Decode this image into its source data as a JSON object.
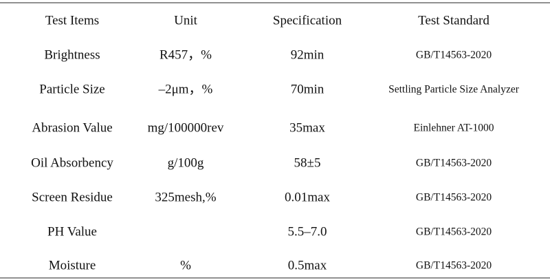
{
  "table": {
    "header": [
      "Test Items",
      "Unit",
      "Specification",
      "Test Standard"
    ],
    "rows": [
      [
        "Brightness",
        "R457，%",
        "92min",
        "GB/T14563-2020"
      ],
      [
        "Particle Size",
        "–2μm，%",
        "70min",
        "Settling Particle Size Analyzer"
      ],
      [
        "Abrasion Value",
        "mg/100000rev",
        "35max",
        "Einlehner  AT-1000"
      ],
      [
        "Oil Absorbency",
        "g/100g",
        "58±5",
        "GB/T14563-2020"
      ],
      [
        "Screen Residue",
        "325mesh,%",
        "0.01max",
        "GB/T14563-2020"
      ],
      [
        "PH Value",
        null,
        "5.5–7.0",
        "GB/T14563-2020"
      ],
      [
        "Moisture",
        "%",
        "0.5max",
        "GB/T14563-2020"
      ]
    ]
  }
}
